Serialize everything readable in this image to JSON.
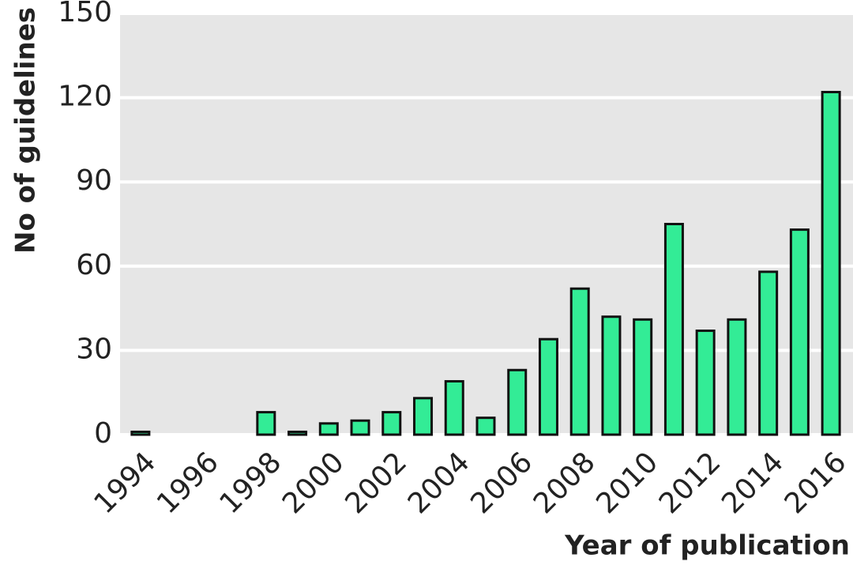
{
  "chart_data": {
    "type": "bar",
    "ylabel": "No of guidelines",
    "xlabel": "Year of publication",
    "categories": [
      "1994",
      null,
      "1996",
      null,
      "1998",
      null,
      "2000",
      null,
      "2002",
      null,
      "2004",
      null,
      "2006",
      null,
      "2008",
      null,
      "2010",
      null,
      "2012",
      null,
      "2014",
      null,
      "2016"
    ],
    "values": [
      1,
      0,
      0,
      0,
      8,
      1,
      4,
      5,
      8,
      13,
      19,
      6,
      23,
      34,
      52,
      42,
      41,
      75,
      37,
      41,
      58,
      73,
      122
    ],
    "color": "#33ec96",
    "ylim": [
      0,
      150
    ],
    "yticks": [
      0,
      30,
      60,
      90,
      120,
      150
    ],
    "grid": true
  }
}
